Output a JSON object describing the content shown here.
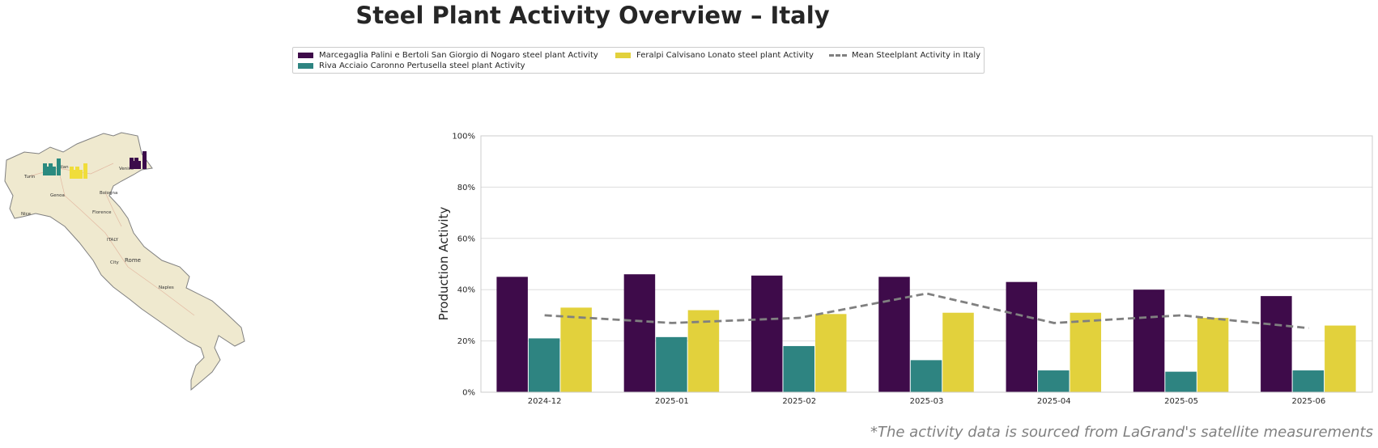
{
  "title": "Steel Plant Activity Overview – Italy",
  "footnote": "*The activity data is sourced from LaGrand's satellite measurements",
  "legend": {
    "marcegaglia": "Marcegaglia Palini e Bertoli San Giorgio di Nogaro steel plant Activity",
    "riva": "Riva Acciaio Caronno Pertusella steel plant Activity",
    "feralpi": "Feralpi Calvisano Lonato steel plant Activity",
    "mean": "Mean Steelplant Activity in Italy"
  },
  "map": {
    "labels": [
      "Turin",
      "Milan",
      "Venice",
      "Genoa",
      "Bologna",
      "Florence",
      "ITALY",
      "Rome",
      "City",
      "Naples",
      "Nice"
    ],
    "plant_colors": [
      "#3b0b4a",
      "#2a8a7f",
      "#e8d43a"
    ]
  },
  "colors": {
    "marcegaglia": "#3e0b4a",
    "riva": "#2e8481",
    "feralpi": "#e2d13c",
    "mean": "#808080",
    "grid": "#dddddd"
  },
  "chart_data": {
    "type": "bar",
    "categories": [
      "2024-12",
      "2025-01",
      "2025-02",
      "2025-03",
      "2025-04",
      "2025-05",
      "2025-06"
    ],
    "series": [
      {
        "name": "Marcegaglia Palini e Bertoli San Giorgio di Nogaro steel plant Activity",
        "values": [
          45,
          46,
          45.5,
          45,
          43,
          40,
          37.5
        ]
      },
      {
        "name": "Riva Acciaio Caronno Pertusella steel plant Activity",
        "values": [
          21,
          21.5,
          18,
          12.5,
          8.5,
          8,
          8.5
        ]
      },
      {
        "name": "Feralpi Calvisano Lonato steel plant Activity",
        "values": [
          33,
          32,
          30.5,
          31,
          31,
          29,
          26
        ]
      }
    ],
    "line_series": {
      "name": "Mean Steelplant Activity in Italy",
      "values": [
        30,
        27,
        29,
        38.5,
        27,
        30,
        25
      ],
      "style": "dashed"
    },
    "ylabel": "Production Activity",
    "xlabel": "",
    "ylim": [
      0,
      100
    ],
    "yticks": [
      "0%",
      "20%",
      "40%",
      "60%",
      "80%",
      "100%"
    ],
    "grid": true
  }
}
